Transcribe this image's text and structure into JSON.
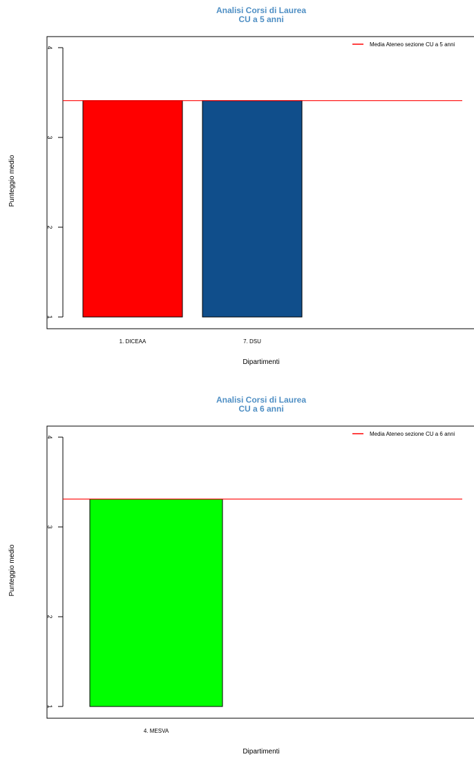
{
  "title_color": "#4f8fc4",
  "chart_data": [
    {
      "type": "bar",
      "title": "Analisi Corsi di Laurea",
      "subtitle": "CU a 5 anni",
      "xlabel": "Dipartimenti",
      "ylabel": "Punteggio medio",
      "categories": [
        "1. DICEAA",
        "7. DSU"
      ],
      "values": [
        3.41,
        3.41
      ],
      "colors": [
        "#ff0000",
        "#104e8b"
      ],
      "ylim": [
        1,
        4
      ],
      "yticks": [
        "1",
        "2",
        "3",
        "4"
      ],
      "reference_line": {
        "label": "Media Ateneo sezione CU a 5 anni",
        "value": 3.41,
        "color": "#ff0000"
      },
      "legend_position": "top-right",
      "grid": false
    },
    {
      "type": "bar",
      "title": "Analisi Corsi di Laurea",
      "subtitle": "CU a 6 anni",
      "xlabel": "Dipartimenti",
      "ylabel": "Punteggio medio",
      "categories": [
        "4. MESVA"
      ],
      "values": [
        3.31
      ],
      "colors": [
        "#00ff00"
      ],
      "ylim": [
        1,
        4
      ],
      "yticks": [
        "1",
        "2",
        "3",
        "4"
      ],
      "reference_line": {
        "label": "Media Ateneo sezione CU a 6 anni",
        "value": 3.31,
        "color": "#ff0000"
      },
      "legend_position": "top-right",
      "grid": false
    }
  ]
}
